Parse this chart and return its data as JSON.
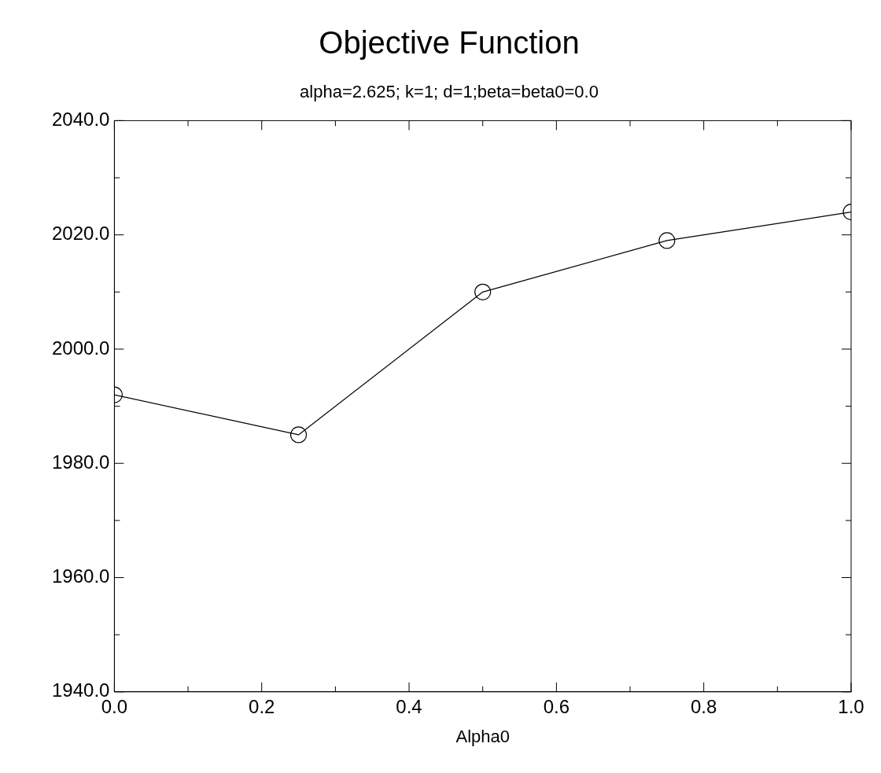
{
  "chart_data": {
    "type": "line",
    "title": "Objective Function",
    "subtitle": "alpha=2.625; k=1; d=1;beta=beta0=0.0",
    "xlabel": "Alpha0",
    "x": [
      0,
      0.25,
      0.5,
      0.75,
      1.0
    ],
    "series": [
      {
        "color": "#000000",
        "values": [
          1992,
          1985,
          2010,
          2019,
          2024
        ]
      }
    ],
    "xlim": [
      0,
      1
    ],
    "xticks": [
      {
        "value": 0,
        "label": "0.0"
      },
      {
        "value": 0.1,
        "label": null
      },
      {
        "value": 0.2,
        "label": "0.2"
      },
      {
        "value": 0.3,
        "label": null
      },
      {
        "value": 0.4,
        "label": "0.4"
      },
      {
        "value": 0.5,
        "label": null
      },
      {
        "value": 0.6,
        "label": "0.6"
      },
      {
        "value": 0.7,
        "label": null
      },
      {
        "value": 0.8,
        "label": "0.8"
      },
      {
        "value": 0.9,
        "label": null
      },
      {
        "value": 1,
        "label": "1.0"
      }
    ],
    "ylim": [
      1940,
      2040
    ],
    "yticks": [
      {
        "value": 1940,
        "label": "1940.0"
      },
      {
        "value": 1950,
        "label": null
      },
      {
        "value": 1960,
        "label": "1960.0"
      },
      {
        "value": 1970,
        "label": null
      },
      {
        "value": 1980,
        "label": "1980.0"
      },
      {
        "value": 1990,
        "label": null
      },
      {
        "value": 2000,
        "label": "2000.0"
      },
      {
        "value": 2010,
        "label": null
      },
      {
        "value": 2020,
        "label": "2020.0"
      },
      {
        "value": 2030,
        "label": null
      },
      {
        "value": 2040,
        "label": "2040.0"
      }
    ],
    "grid": false,
    "legend": false,
    "marker": "circle",
    "line_style": "solid"
  }
}
